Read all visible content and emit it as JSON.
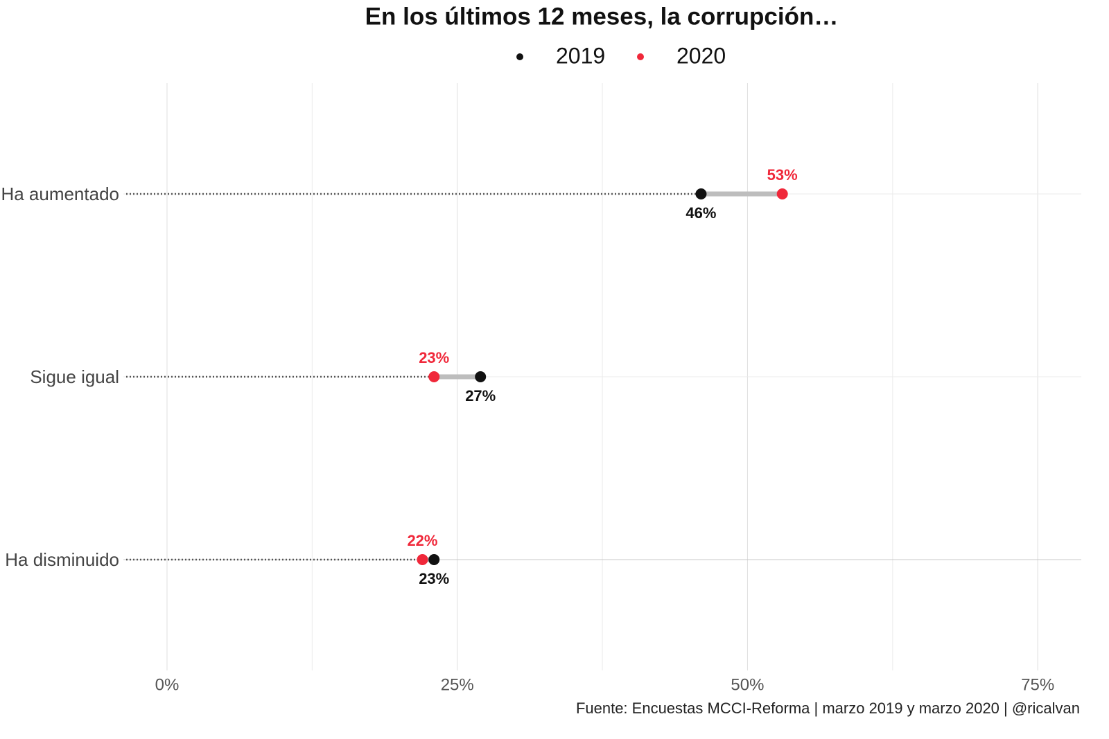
{
  "chart_data": {
    "type": "dumbbell",
    "title": "En los últimos 12 meses, la corrupción…",
    "caption": "Fuente: Encuestas MCCI-Reforma | marzo 2019 y marzo 2020 | @ricalvan",
    "categories": [
      "Ha aumentado",
      "Sigue igual",
      "Ha disminuido"
    ],
    "series": [
      {
        "name": "2019",
        "color": "#111111",
        "values": [
          46,
          27,
          23
        ],
        "value_labels": [
          "46%",
          "27%",
          "23%"
        ]
      },
      {
        "name": "2020",
        "color": "#f0283a",
        "values": [
          53,
          23,
          22
        ],
        "value_labels": [
          "53%",
          "23%",
          "22%"
        ]
      }
    ],
    "xlim": [
      -3.76,
      78.75
    ],
    "xticks": [
      {
        "value": 0,
        "label": "0%"
      },
      {
        "value": 25,
        "label": "25%"
      },
      {
        "value": 50,
        "label": "50%"
      },
      {
        "value": 75,
        "label": "75%"
      }
    ],
    "xminorticks": [
      12.5,
      37.5,
      62.5
    ],
    "grid": true,
    "legend": "top"
  }
}
